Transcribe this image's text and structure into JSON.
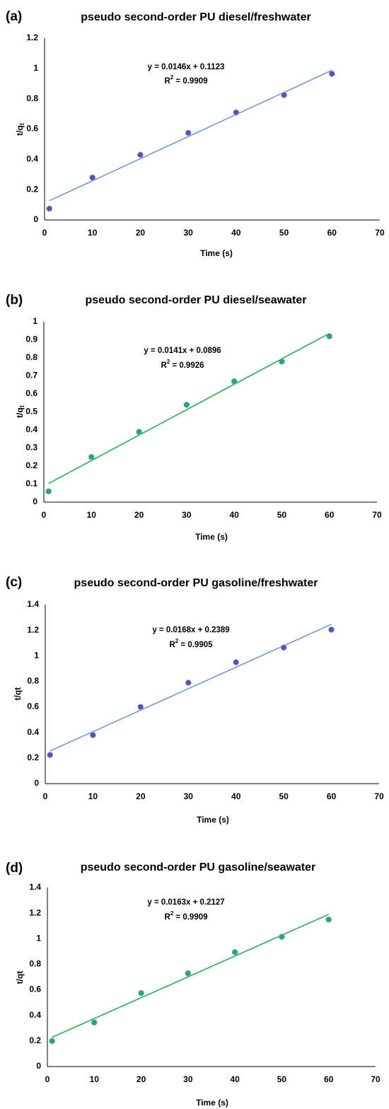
{
  "chart_data": [
    {
      "type": "scatter",
      "panel_label": "(a)",
      "title": "pseudo second-order PU diesel/freshwater",
      "xlabel": "Time (s)",
      "ylabel": "t/q",
      "ylabel_sub": "t",
      "xlim": [
        0,
        70
      ],
      "ylim": [
        0,
        1.2
      ],
      "x_ticks": [
        "0",
        "10",
        "20",
        "30",
        "40",
        "50",
        "60",
        "70"
      ],
      "y_ticks": [
        "0",
        "0.2",
        "0.4",
        "0.6",
        "0.8",
        "1",
        "1.2"
      ],
      "grid": false,
      "marker_color": "#5b4fb3",
      "line_color": "#6f9bd1",
      "series": [
        {
          "x": [
            1,
            10,
            20,
            30,
            40,
            50,
            60
          ],
          "y": [
            0.075,
            0.28,
            0.43,
            0.575,
            0.71,
            0.825,
            0.965
          ]
        }
      ],
      "trendline": {
        "slope": 0.0146,
        "intercept": 0.1123,
        "x_range": [
          1,
          60
        ]
      },
      "equation": "y = 0.0146x + 0.1123",
      "r2_label": "R",
      "r2_value": " = 0.9909"
    },
    {
      "type": "scatter",
      "panel_label": "(b)",
      "title": "pseudo second-order PU diesel/seawater",
      "xlabel": "Time (s)",
      "ylabel": "t/q",
      "ylabel_sub": "t",
      "xlim": [
        0,
        70
      ],
      "ylim": [
        0,
        1
      ],
      "x_ticks": [
        "0",
        "10",
        "20",
        "30",
        "40",
        "50",
        "60",
        "70"
      ],
      "y_ticks": [
        "0",
        "0.1",
        "0.2",
        "0.3",
        "0.4",
        "0.5",
        "0.6",
        "0.7",
        "0.8",
        "0.9",
        "1"
      ],
      "grid": false,
      "marker_color": "#21a67a",
      "line_color": "#22b14c",
      "series": [
        {
          "x": [
            1,
            10,
            20,
            30,
            40,
            50,
            60
          ],
          "y": [
            0.06,
            0.25,
            0.39,
            0.54,
            0.67,
            0.78,
            0.92
          ]
        }
      ],
      "trendline": {
        "slope": 0.0141,
        "intercept": 0.0896,
        "x_range": [
          1,
          60
        ]
      },
      "equation": "y = 0.0141x + 0.0896",
      "r2_label": "R",
      "r2_value": " = 0.9926"
    },
    {
      "type": "scatter",
      "panel_label": "(c)",
      "title": "pseudo second-order PU gasoline/freshwater",
      "xlabel": "Time (s)",
      "ylabel": "t/qt",
      "ylabel_sub": "",
      "xlim": [
        0,
        70
      ],
      "ylim": [
        0,
        1.4
      ],
      "x_ticks": [
        "0",
        "10",
        "20",
        "30",
        "40",
        "50",
        "60",
        "70"
      ],
      "y_ticks": [
        "0",
        "0.2",
        "0.4",
        "0.6",
        "0.8",
        "1",
        "1.2",
        "1.4"
      ],
      "grid": false,
      "marker_color": "#5b4fb3",
      "line_color": "#6f9bd1",
      "series": [
        {
          "x": [
            1,
            10,
            20,
            30,
            40,
            50,
            60
          ],
          "y": [
            0.225,
            0.38,
            0.6,
            0.79,
            0.95,
            1.065,
            1.205
          ]
        }
      ],
      "trendline": {
        "slope": 0.0168,
        "intercept": 0.2389,
        "x_range": [
          1,
          60
        ]
      },
      "equation": "y = 0.0168x + 0.2389",
      "r2_label": "R",
      "r2_value": " = 0.9905"
    },
    {
      "type": "scatter",
      "panel_label": "(d)",
      "title": "pseudo second-order PU gasoline/seawater",
      "xlabel": "Time (s)",
      "ylabel": "t/qt",
      "ylabel_sub": "",
      "xlim": [
        0,
        70
      ],
      "ylim": [
        0,
        1.4
      ],
      "x_ticks": [
        "0",
        "10",
        "20",
        "30",
        "40",
        "50",
        "60",
        "70"
      ],
      "y_ticks": [
        "0",
        "0.2",
        "0.4",
        "0.6",
        "0.8",
        "1",
        "1.2",
        "1.4"
      ],
      "grid": false,
      "marker_color": "#21a67a",
      "line_color": "#22b14c",
      "series": [
        {
          "x": [
            1,
            10,
            20,
            30,
            40,
            50,
            60
          ],
          "y": [
            0.2,
            0.345,
            0.575,
            0.73,
            0.895,
            1.015,
            1.15
          ]
        }
      ],
      "trendline": {
        "slope": 0.0163,
        "intercept": 0.2127,
        "x_range": [
          1,
          60
        ]
      },
      "equation": "y = 0.0163x + 0.2127",
      "r2_label": "R",
      "r2_value": " = 0.9909"
    }
  ]
}
